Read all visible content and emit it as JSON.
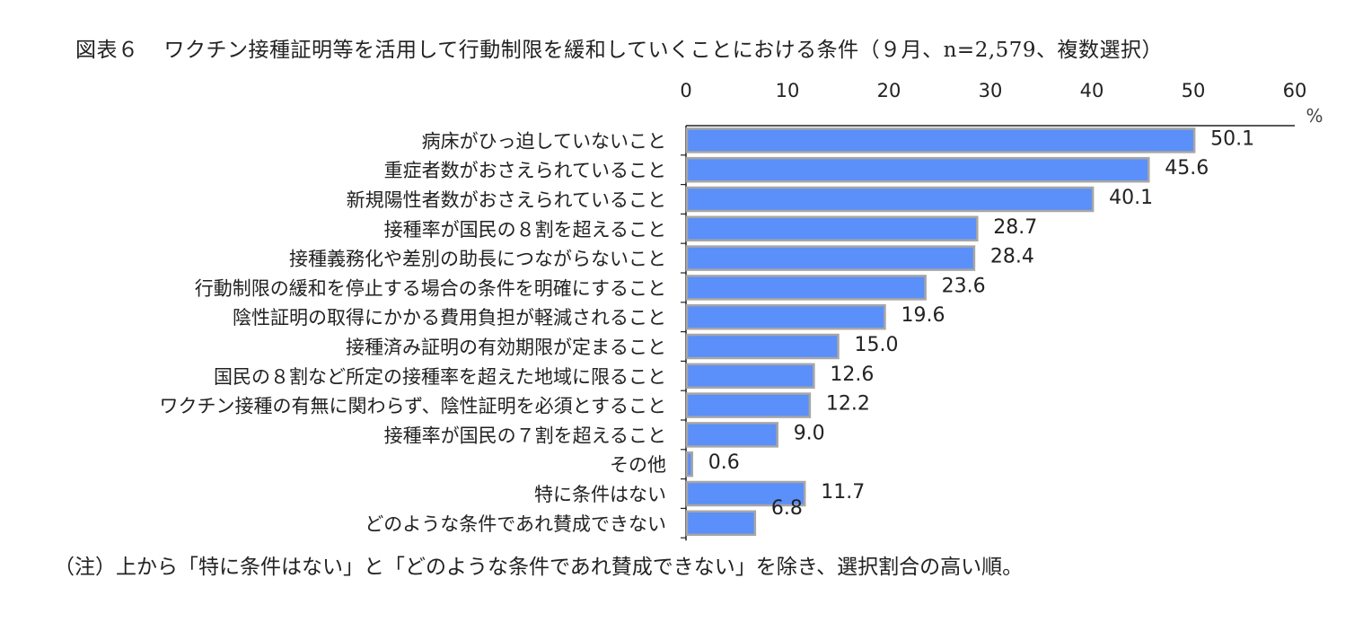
{
  "figure": {
    "label": "図表６",
    "title": "ワクチン接種証明等を活用して行動制限を緩和していくことにおける条件（９月、n=2,579、複数選択）",
    "note": "（注）上から「特に条件はない」と「どのような条件であれ賛成できない」を除き、選択割合の高い順。"
  },
  "chart_data": {
    "type": "bar",
    "orientation": "horizontal",
    "title": "ワクチン接種証明等を活用して行動制限を緩和していくことにおける条件（９月、n=2,579、複数選択）",
    "xlabel": "",
    "ylabel": "",
    "unit": "%",
    "xlim": [
      0,
      60
    ],
    "x_ticks": [
      "0",
      "10",
      "20",
      "30",
      "40",
      "50",
      "60"
    ],
    "axis_position": "top",
    "grid": false,
    "bar_color": "#5b8ff9",
    "bar_border_color": "#a6a6a6",
    "categories": [
      "病床がひっ迫していないこと",
      "重症者数がおさえられていること",
      "新規陽性者数がおさえられていること",
      "接種率が国民の８割を超えること",
      "接種義務化や差別の助長につながらないこと",
      "行動制限の緩和を停止する場合の条件を明確にすること",
      "陰性証明の取得にかかる費用負担が軽減されること",
      "接種済み証明の有効期限が定まること",
      "国民の８割など所定の接種率を超えた地域に限ること",
      "ワクチン接種の有無に関わらず、陰性証明を必須とすること",
      "接種率が国民の７割を超えること",
      "その他",
      "特に条件はない",
      "どのような条件であれ賛成できない"
    ],
    "values": [
      50.1,
      45.6,
      40.1,
      28.7,
      28.4,
      23.6,
      19.6,
      15.0,
      12.6,
      12.2,
      9.0,
      0.6,
      11.7,
      6.8
    ],
    "value_labels": [
      "50.1",
      "45.6",
      "40.1",
      "28.7",
      "28.4",
      "23.6",
      "19.6",
      "15.0",
      "12.6",
      "12.2",
      "9.0",
      "0.6",
      "11.7",
      "6.8"
    ]
  }
}
